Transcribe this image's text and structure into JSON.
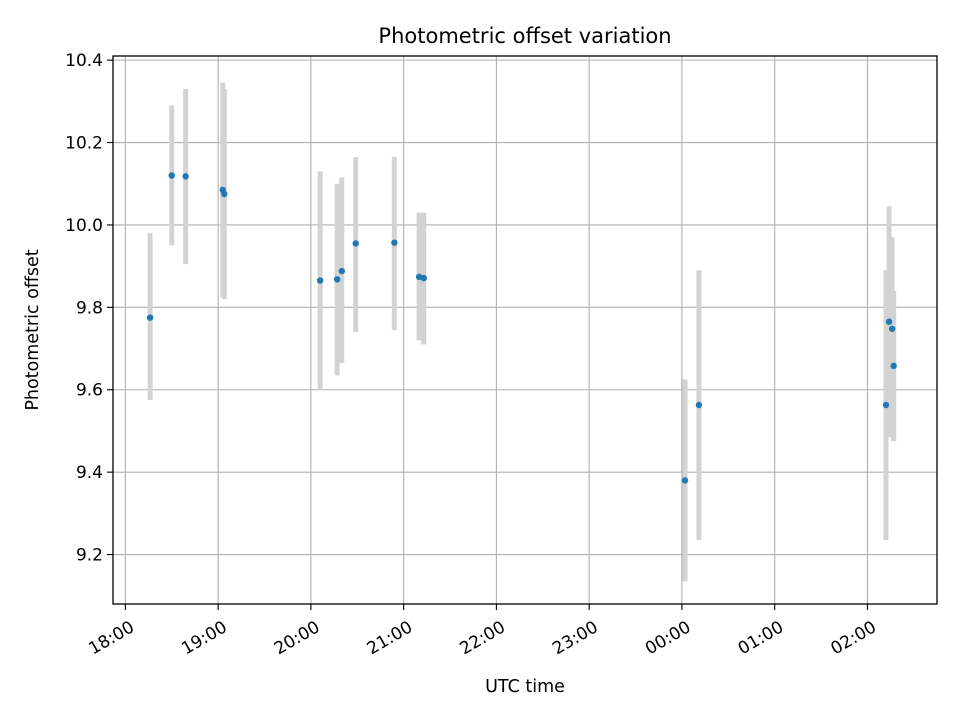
{
  "chart_data": {
    "type": "scatter",
    "title": "Photometric offset variation",
    "xlabel": "UTC time",
    "ylabel": "Photometric offset",
    "x_axis": {
      "kind": "time",
      "range": [
        "18:00",
        "02:45"
      ],
      "ticks": [
        "18:00",
        "19:00",
        "20:00",
        "21:00",
        "22:00",
        "23:00",
        "00:00",
        "01:00",
        "02:00"
      ]
    },
    "y_axis": {
      "range": [
        9.08,
        10.41
      ],
      "ticks": [
        9.2,
        9.4,
        9.6,
        9.8,
        10.0,
        10.2,
        10.4
      ],
      "tick_labels": [
        "9.2",
        "9.4",
        "9.6",
        "9.8",
        "10.0",
        "10.2",
        "10.4"
      ]
    },
    "grid": true,
    "marker_color": "#1f77b4",
    "errorbar_color": "#d3d3d3",
    "points": [
      {
        "time": "18:16",
        "y": 9.775,
        "ylow": 9.575,
        "yhigh": 9.98
      },
      {
        "time": "18:30",
        "y": 10.12,
        "ylow": 9.95,
        "yhigh": 10.29
      },
      {
        "time": "18:39",
        "y": 10.118,
        "ylow": 9.905,
        "yhigh": 10.33
      },
      {
        "time": "19:03",
        "y": 10.085,
        "ylow": 9.825,
        "yhigh": 10.345
      },
      {
        "time": "19:04",
        "y": 10.075,
        "ylow": 9.82,
        "yhigh": 10.33
      },
      {
        "time": "20:06",
        "y": 9.865,
        "ylow": 9.6,
        "yhigh": 10.13
      },
      {
        "time": "20:17",
        "y": 9.868,
        "ylow": 9.635,
        "yhigh": 10.1
      },
      {
        "time": "20:20",
        "y": 9.888,
        "ylow": 9.665,
        "yhigh": 10.115
      },
      {
        "time": "20:29",
        "y": 9.955,
        "ylow": 9.74,
        "yhigh": 10.165
      },
      {
        "time": "20:54",
        "y": 9.957,
        "ylow": 9.745,
        "yhigh": 10.165
      },
      {
        "time": "21:10",
        "y": 9.874,
        "ylow": 9.72,
        "yhigh": 10.03
      },
      {
        "time": "21:13",
        "y": 9.871,
        "ylow": 9.71,
        "yhigh": 10.03
      },
      {
        "time": "00:02",
        "y": 9.38,
        "ylow": 9.135,
        "yhigh": 9.625
      },
      {
        "time": "00:11",
        "y": 9.563,
        "ylow": 9.235,
        "yhigh": 9.89
      },
      {
        "time": "02:12",
        "y": 9.563,
        "ylow": 9.235,
        "yhigh": 9.89
      },
      {
        "time": "02:14",
        "y": 9.765,
        "ylow": 9.485,
        "yhigh": 10.045
      },
      {
        "time": "02:16",
        "y": 9.748,
        "ylow": 9.525,
        "yhigh": 9.97
      },
      {
        "time": "02:17",
        "y": 9.658,
        "ylow": 9.475,
        "yhigh": 9.84
      }
    ]
  }
}
